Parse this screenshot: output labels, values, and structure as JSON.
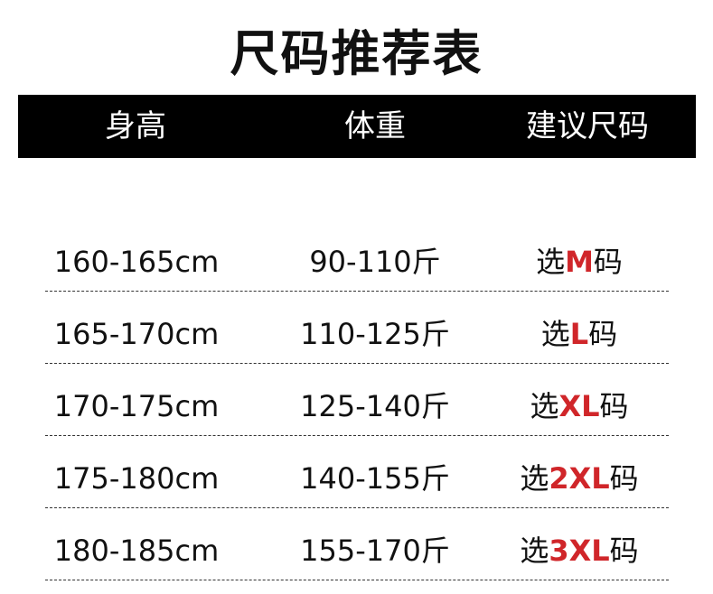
{
  "title": "尺码推荐表",
  "headers": [
    "身高",
    "体重",
    "建议尺码"
  ],
  "accent_color": "#d0262a",
  "rows": [
    {
      "height": "160-165cm",
      "weight": "90-110斤",
      "prefix": "选",
      "size": "M",
      "suffix": "码"
    },
    {
      "height": "165-170cm",
      "weight": "110-125斤",
      "prefix": "选",
      "size": "L",
      "suffix": "码"
    },
    {
      "height": "170-175cm",
      "weight": "125-140斤",
      "prefix": "选",
      "size": "XL",
      "suffix": "码"
    },
    {
      "height": "175-180cm",
      "weight": "140-155斤",
      "prefix": "选",
      "size": "2XL",
      "suffix": "码"
    },
    {
      "height": "180-185cm",
      "weight": "155-170斤",
      "prefix": "选",
      "size": "3XL",
      "suffix": "码"
    }
  ]
}
